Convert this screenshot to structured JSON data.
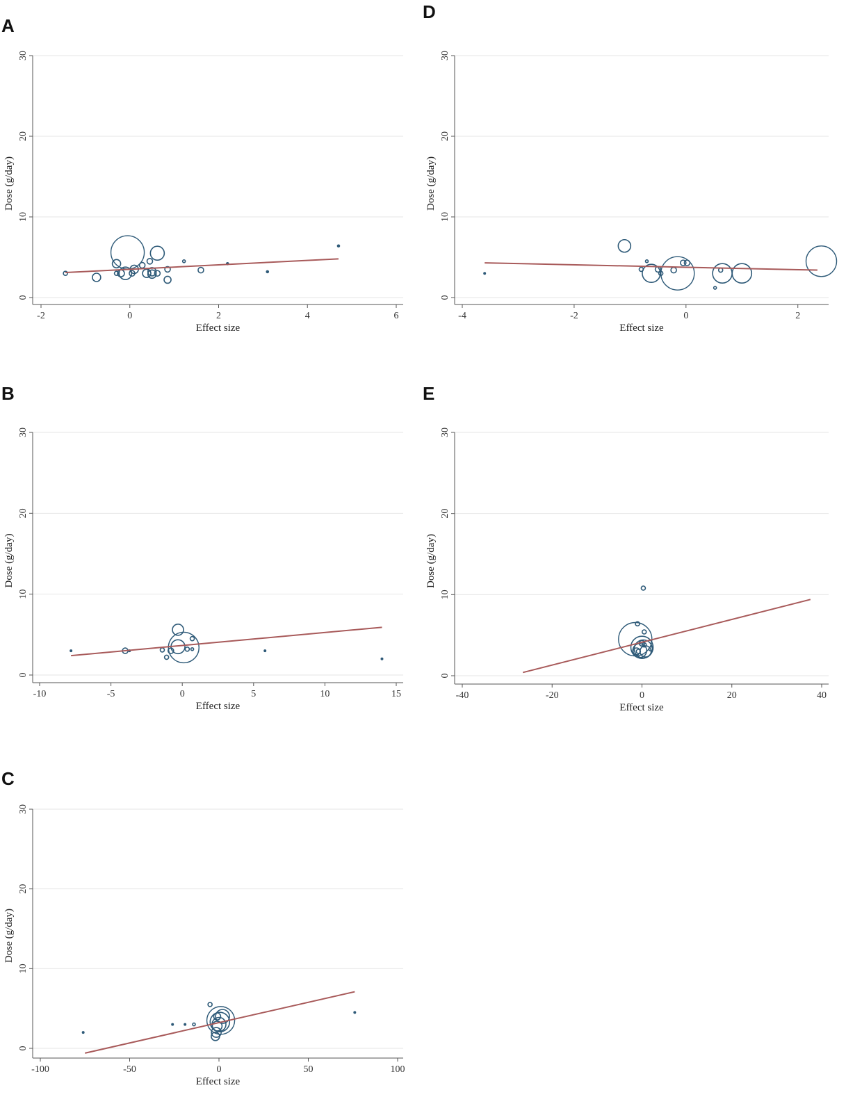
{
  "panel_letters": {
    "A": "A",
    "B": "B",
    "C": "C",
    "D": "D",
    "E": "E"
  },
  "colors": {
    "bubble": "#2e5a78",
    "fit": "#a85a5a",
    "grid": "#e6e6e6",
    "axis": "#555555"
  },
  "chart_data": [
    {
      "panel": "A",
      "type": "scatter",
      "xlabel": "Effect size",
      "ylabel": "Dose (g/day)",
      "xlim": [
        -2,
        6
      ],
      "ylim": [
        0,
        30
      ],
      "xticks": [
        -2,
        0,
        2,
        4,
        6
      ],
      "xtick_labels": [
        "-2",
        "0",
        "2",
        "4",
        "6"
      ],
      "yticks": [
        0,
        10,
        20,
        30
      ],
      "ytick_labels": [
        "0",
        "10",
        "20",
        "30"
      ],
      "fit_line": [
        [
          -1.45,
          3.1
        ],
        [
          4.7,
          4.8
        ]
      ],
      "points": [
        {
          "x": -1.45,
          "y": 3.0,
          "w": 3
        },
        {
          "x": -0.75,
          "y": 2.5,
          "w": 6
        },
        {
          "x": -0.3,
          "y": 4.2,
          "w": 6
        },
        {
          "x": -0.3,
          "y": 3.0,
          "w": 3
        },
        {
          "x": -0.2,
          "y": 3.0,
          "w": 5
        },
        {
          "x": -0.05,
          "y": 5.6,
          "w": 24
        },
        {
          "x": -0.1,
          "y": 3.0,
          "w": 9
        },
        {
          "x": 0.05,
          "y": 3.0,
          "w": 4
        },
        {
          "x": 0.1,
          "y": 3.5,
          "w": 6
        },
        {
          "x": 0.28,
          "y": 4.0,
          "w": 4
        },
        {
          "x": 0.38,
          "y": 3.0,
          "w": 6
        },
        {
          "x": 0.45,
          "y": 4.5,
          "w": 4
        },
        {
          "x": 0.5,
          "y": 3.2,
          "w": 6
        },
        {
          "x": 0.5,
          "y": 2.9,
          "w": 6
        },
        {
          "x": 0.62,
          "y": 5.5,
          "w": 10
        },
        {
          "x": 0.62,
          "y": 3.0,
          "w": 4
        },
        {
          "x": 0.85,
          "y": 2.2,
          "w": 5
        },
        {
          "x": 0.85,
          "y": 3.5,
          "w": 4
        },
        {
          "x": 1.22,
          "y": 4.5,
          "w": 2
        },
        {
          "x": 1.6,
          "y": 3.4,
          "w": 4
        },
        {
          "x": 2.2,
          "y": 4.2,
          "w": 1.5
        },
        {
          "x": 3.1,
          "y": 3.2,
          "w": 1.5
        },
        {
          "x": 4.7,
          "y": 6.4,
          "w": 1.5
        }
      ]
    },
    {
      "panel": "B",
      "type": "scatter",
      "xlabel": "Effect size",
      "ylabel": "Dose (g/day)",
      "xlim": [
        -10,
        15
      ],
      "ylim": [
        0,
        30
      ],
      "xticks": [
        -10,
        -5,
        0,
        5,
        10,
        15
      ],
      "xtick_labels": [
        "-10",
        "-5",
        "0",
        "5",
        "10",
        "15"
      ],
      "yticks": [
        0,
        10,
        20,
        30
      ],
      "ytick_labels": [
        "0",
        "10",
        "20",
        "30"
      ],
      "fit_line": [
        [
          -7.8,
          2.4
        ],
        [
          14,
          5.9
        ]
      ],
      "points": [
        {
          "x": -7.8,
          "y": 3.0,
          "w": 1
        },
        {
          "x": -4.0,
          "y": 3.0,
          "w": 4
        },
        {
          "x": -3.7,
          "y": 3.0,
          "w": 1
        },
        {
          "x": -1.4,
          "y": 3.1,
          "w": 3
        },
        {
          "x": -1.1,
          "y": 2.2,
          "w": 3
        },
        {
          "x": -0.8,
          "y": 3.0,
          "w": 4
        },
        {
          "x": -0.3,
          "y": 5.6,
          "w": 8
        },
        {
          "x": -0.3,
          "y": 3.5,
          "w": 10
        },
        {
          "x": 0.1,
          "y": 3.4,
          "w": 22
        },
        {
          "x": 0.35,
          "y": 3.2,
          "w": 3
        },
        {
          "x": 0.7,
          "y": 4.5,
          "w": 3
        },
        {
          "x": 0.7,
          "y": 3.2,
          "w": 2
        },
        {
          "x": 5.8,
          "y": 3.0,
          "w": 1
        },
        {
          "x": 14.0,
          "y": 2.0,
          "w": 1
        }
      ]
    },
    {
      "panel": "C",
      "type": "scatter",
      "xlabel": "Effect size",
      "ylabel": "Dose (g/day)",
      "xlim": [
        -100,
        100
      ],
      "ylim": [
        0,
        30
      ],
      "xticks": [
        -100,
        -50,
        0,
        50,
        100
      ],
      "xtick_labels": [
        "-100",
        "-50",
        "0",
        "50",
        "100"
      ],
      "yticks": [
        0,
        10,
        20,
        30
      ],
      "ytick_labels": [
        "0",
        "10",
        "20",
        "30"
      ],
      "fit_line": [
        [
          -75,
          -0.6
        ],
        [
          76,
          7.1
        ]
      ],
      "points": [
        {
          "x": -76,
          "y": 2.0,
          "w": 1
        },
        {
          "x": -26,
          "y": 3.0,
          "w": 1
        },
        {
          "x": -19,
          "y": 3.0,
          "w": 1
        },
        {
          "x": -14,
          "y": 3.0,
          "w": 2
        },
        {
          "x": -5,
          "y": 5.5,
          "w": 3
        },
        {
          "x": -2,
          "y": 1.5,
          "w": 6
        },
        {
          "x": -1.5,
          "y": 2.0,
          "w": 7
        },
        {
          "x": -1,
          "y": 4.0,
          "w": 5
        },
        {
          "x": -1,
          "y": 2.8,
          "w": 7
        },
        {
          "x": 0,
          "y": 3.0,
          "w": 10
        },
        {
          "x": 0.5,
          "y": 3.3,
          "w": 14
        },
        {
          "x": 1,
          "y": 3.5,
          "w": 20
        },
        {
          "x": 2,
          "y": 4.0,
          "w": 10
        },
        {
          "x": 76,
          "y": 4.5,
          "w": 1
        }
      ]
    },
    {
      "panel": "D",
      "type": "scatter",
      "xlabel": "Effect size",
      "ylabel": "Dose (g/day)",
      "xlim": [
        -4,
        2.6
      ],
      "ylim": [
        0,
        30
      ],
      "xticks": [
        -4,
        -2,
        0,
        2
      ],
      "xtick_labels": [
        "-4",
        "-2",
        "0",
        "2"
      ],
      "yticks": [
        0,
        10,
        20,
        30
      ],
      "ytick_labels": [
        "0",
        "10",
        "20",
        "30"
      ],
      "fit_line": [
        [
          -3.6,
          4.3
        ],
        [
          2.35,
          3.4
        ]
      ],
      "points": [
        {
          "x": -3.6,
          "y": 3.0,
          "w": 1
        },
        {
          "x": -1.1,
          "y": 6.4,
          "w": 9
        },
        {
          "x": -0.8,
          "y": 3.5,
          "w": 3
        },
        {
          "x": -0.7,
          "y": 4.5,
          "w": 2
        },
        {
          "x": -0.62,
          "y": 3.0,
          "w": 13
        },
        {
          "x": -0.5,
          "y": 3.5,
          "w": 4
        },
        {
          "x": -0.45,
          "y": 3.0,
          "w": 3
        },
        {
          "x": -0.22,
          "y": 3.4,
          "w": 4
        },
        {
          "x": -0.15,
          "y": 3.0,
          "w": 24
        },
        {
          "x": -0.05,
          "y": 4.3,
          "w": 4
        },
        {
          "x": 0.02,
          "y": 4.3,
          "w": 4
        },
        {
          "x": 0.52,
          "y": 1.2,
          "w": 2
        },
        {
          "x": 0.65,
          "y": 3.0,
          "w": 14
        },
        {
          "x": 0.62,
          "y": 3.4,
          "w": 3
        },
        {
          "x": 1.0,
          "y": 3.0,
          "w": 14
        },
        {
          "x": 2.42,
          "y": 4.5,
          "w": 22
        }
      ]
    },
    {
      "panel": "E",
      "type": "scatter",
      "xlabel": "Effect size",
      "ylabel": "Dose (g/day)",
      "xlim": [
        -40,
        40
      ],
      "ylim": [
        0,
        30
      ],
      "xticks": [
        -40,
        -20,
        0,
        20,
        40
      ],
      "xtick_labels": [
        "-40",
        "-20",
        "0",
        "20",
        "40"
      ],
      "yticks": [
        0,
        10,
        20,
        30
      ],
      "ytick_labels": [
        "0",
        "10",
        "20",
        "30"
      ],
      "fit_line": [
        [
          -26.5,
          0.4
        ],
        [
          37.5,
          9.4
        ]
      ],
      "points": [
        {
          "x": 0.3,
          "y": 10.8,
          "w": 3
        },
        {
          "x": -1,
          "y": 6.4,
          "w": 3
        },
        {
          "x": -1.5,
          "y": 4.5,
          "w": 24
        },
        {
          "x": 0.5,
          "y": 5.4,
          "w": 3
        },
        {
          "x": 0,
          "y": 4.0,
          "w": 4
        },
        {
          "x": 0.5,
          "y": 3.8,
          "w": 3
        },
        {
          "x": 0,
          "y": 3.5,
          "w": 16
        },
        {
          "x": 0.3,
          "y": 3.3,
          "w": 13
        },
        {
          "x": -0.5,
          "y": 3.1,
          "w": 10
        },
        {
          "x": 0.8,
          "y": 3.0,
          "w": 8
        },
        {
          "x": -1.2,
          "y": 3.0,
          "w": 5
        },
        {
          "x": 2,
          "y": 3.3,
          "w": 3
        },
        {
          "x": -0.8,
          "y": 3.0,
          "w": 3
        }
      ]
    }
  ]
}
